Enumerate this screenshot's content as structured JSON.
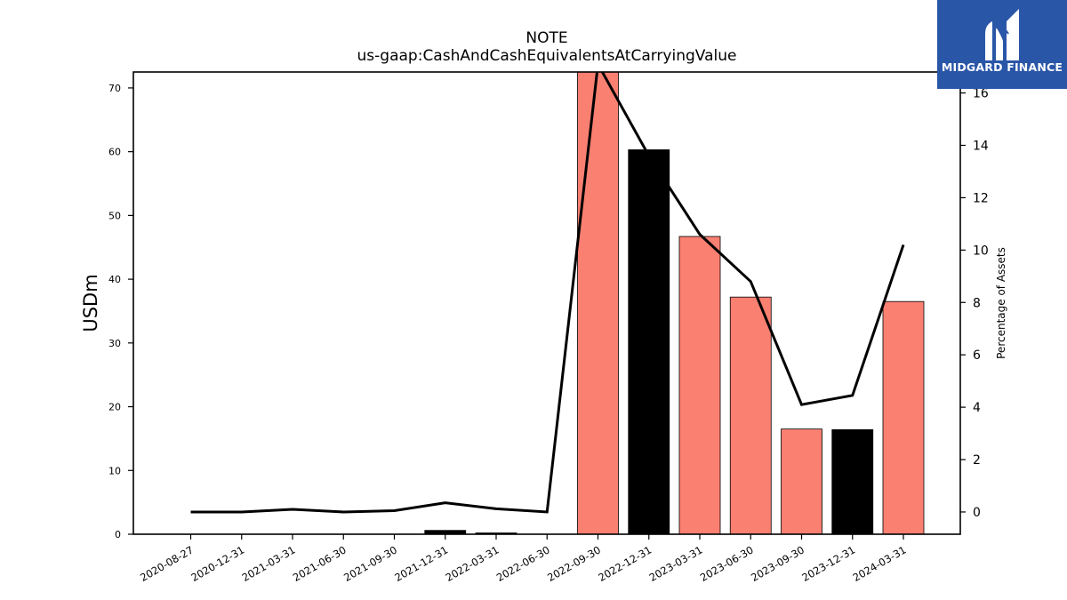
{
  "chart_data": {
    "type": "bar",
    "title": "NOTE",
    "subtitle": "us-gaap:CashAndCashEquivalentsAtCarryingValue",
    "ylabel": "USDm",
    "y2label": "Percentage of Assets",
    "categories": [
      "2020-08-27",
      "2020-12-31",
      "2021-03-31",
      "2021-06-30",
      "2021-09-30",
      "2021-12-31",
      "2022-03-31",
      "2022-06-30",
      "2022-09-30",
      "2022-12-31",
      "2023-03-31",
      "2023-06-30",
      "2023-09-30",
      "2023-12-31",
      "2024-03-31"
    ],
    "values": [
      0,
      0,
      0,
      0,
      0,
      0.6,
      0.2,
      0,
      73.5,
      60.3,
      46.7,
      37.2,
      16.5,
      16.4,
      36.5
    ],
    "bar_colors": [
      "#fa8072",
      "#fa8072",
      "#fa8072",
      "#fa8072",
      "#fa8072",
      "#000000",
      "#000000",
      "#fa8072",
      "#fa8072",
      "#000000",
      "#fa8072",
      "#fa8072",
      "#fa8072",
      "#000000",
      "#fa8072"
    ],
    "pct_assets": [
      0,
      0,
      0.1,
      0,
      0.05,
      0.35,
      0.12,
      0,
      17.1,
      13.6,
      10.6,
      8.8,
      4.1,
      4.45,
      10.2
    ],
    "ylim": [
      0,
      72.5
    ],
    "y2lim": [
      -0.85,
      16.8
    ],
    "yticks": [
      0,
      10,
      20,
      30,
      40,
      50,
      60,
      70
    ],
    "y2ticks": [
      0,
      2,
      4,
      6,
      8,
      10,
      12,
      14,
      16
    ],
    "grid": false,
    "legend": "none"
  },
  "logo": {
    "text": "MIDGARD FINANCE"
  }
}
